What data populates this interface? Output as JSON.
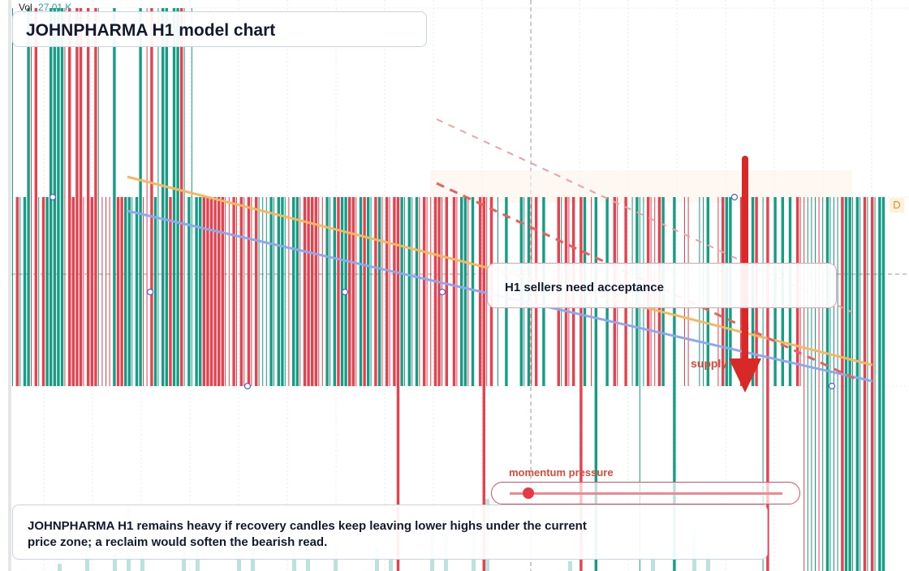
{
  "header": {
    "vol_label": "Vol",
    "vol_value": "27.01 K",
    "title": "JOHNPHARMA H1 model chart"
  },
  "chart": {
    "interval_badge": "D",
    "callout": "H1 sellers need acceptance",
    "zone_label": "supply",
    "slider_label": "momentum pressure"
  },
  "note": "JOHNPHARMA H1 remains heavy if recovery candles keep leaving lower highs under the current price zone; a reclaim would soften the bearish read."
}
